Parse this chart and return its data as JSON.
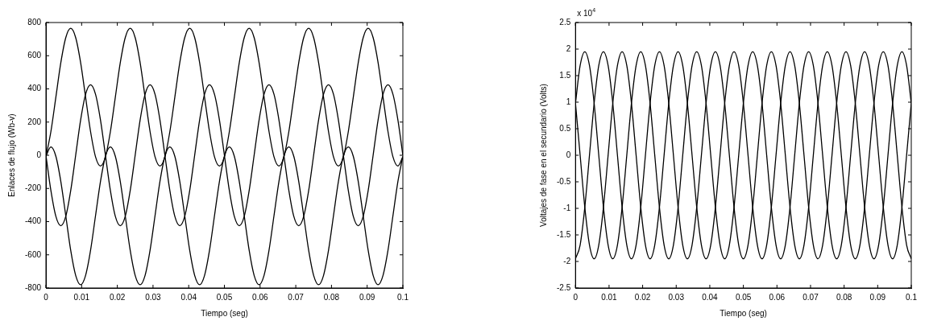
{
  "chart_data": [
    {
      "type": "line",
      "xlabel": "Tiempo (seg)",
      "ylabel": "Enlaces de flujo (Wb-v)",
      "x": [
        0,
        0.00139,
        0.00278,
        0.00417,
        0.00556,
        0.00694,
        0.00833,
        0.00972,
        0.01111,
        0.0125,
        0.01389,
        0.01528,
        0.01667,
        0.01806,
        0.01944,
        0.02083,
        0.02222,
        0.02361,
        0.025,
        0.02639,
        0.02778,
        0.02917,
        0.03056,
        0.03194,
        0.03333,
        0.03472,
        0.03611,
        0.0375,
        0.03889,
        0.04028,
        0.04167,
        0.04306,
        0.04444,
        0.04583,
        0.04722,
        0.04861,
        0.05,
        0.05139,
        0.05278,
        0.05417,
        0.05556,
        0.05694,
        0.05833,
        0.05972,
        0.06111,
        0.0625,
        0.06389,
        0.06528,
        0.06667,
        0.06806,
        0.06944,
        0.07083,
        0.07222,
        0.07361,
        0.075,
        0.07639,
        0.07778,
        0.07917,
        0.08056,
        0.08194,
        0.08333,
        0.08472,
        0.08611,
        0.0875,
        0.08889,
        0.09028,
        0.09167,
        0.09306,
        0.09444,
        0.09583,
        0.09722,
        0.09861,
        0.1
      ],
      "series": [
        {
          "color": "#000000",
          "values": [
            -9,
            143,
            350,
            558,
            709,
            765,
            709,
            558,
            350,
            143,
            -9,
            -65,
            -9,
            143,
            350,
            558,
            709,
            765,
            709,
            558,
            350,
            143,
            -9,
            -65,
            -9,
            143,
            350,
            558,
            709,
            765,
            709,
            558,
            350,
            143,
            -9,
            -65,
            -9,
            143,
            350,
            558,
            709,
            765,
            709,
            558,
            350,
            143,
            -9,
            -65,
            -9,
            143,
            350,
            558,
            709,
            765,
            709,
            558,
            350,
            143,
            -9,
            -65,
            -9,
            143,
            350,
            558,
            709,
            765,
            709,
            558,
            350,
            143,
            -9,
            -65,
            -9
          ]
        },
        {
          "color": "#000000",
          "values": [
            0,
            -213,
            -368,
            -425,
            -368,
            -213,
            0,
            213,
            368,
            425,
            368,
            213,
            0,
            -213,
            -368,
            -425,
            -368,
            -213,
            0,
            213,
            368,
            425,
            368,
            213,
            0,
            -213,
            -368,
            -425,
            -368,
            -213,
            0,
            213,
            368,
            425,
            368,
            213,
            0,
            -213,
            -368,
            -425,
            -368,
            -213,
            0,
            213,
            368,
            425,
            368,
            213,
            0,
            -213,
            -368,
            -425,
            -368,
            -213,
            0,
            213,
            368,
            425,
            368,
            213,
            0,
            -213,
            -368,
            -425,
            -368,
            -213,
            0,
            213,
            368,
            425,
            368,
            213,
            0
          ]
        },
        {
          "color": "#000000",
          "values": [
            -6,
            50,
            -6,
            -158,
            -365,
            -573,
            -724,
            -780,
            -724,
            -573,
            -365,
            -158,
            -6,
            50,
            -6,
            -158,
            -365,
            -573,
            -724,
            -780,
            -724,
            -573,
            -365,
            -158,
            -6,
            50,
            -6,
            -158,
            -365,
            -573,
            -724,
            -780,
            -724,
            -573,
            -365,
            -158,
            -6,
            50,
            -6,
            -158,
            -365,
            -573,
            -724,
            -780,
            -724,
            -573,
            -365,
            -158,
            -6,
            50,
            -6,
            -158,
            -365,
            -573,
            -724,
            -780,
            -724,
            -573,
            -365,
            -158,
            -6,
            50,
            -6,
            -158,
            -365,
            -573,
            -724,
            -780,
            -724,
            -573,
            -365,
            -158,
            -6
          ]
        }
      ],
      "xlim": [
        0,
        0.1
      ],
      "xticks": [
        0,
        0.01,
        0.02,
        0.03,
        0.04,
        0.05,
        0.06,
        0.07,
        0.08,
        0.09,
        0.1
      ],
      "ylim": [
        -800,
        800
      ],
      "yticks": [
        -800,
        -600,
        -400,
        -200,
        0,
        200,
        400,
        600,
        800
      ]
    },
    {
      "type": "line",
      "xlabel": "Tiempo (seg)",
      "ylabel": "Voltajes de fase en el secundario (Volts)",
      "annotations": [
        "x 10$^{4}$"
      ],
      "x": [
        0,
        0.00139,
        0.00278,
        0.00417,
        0.00556,
        0.00694,
        0.00833,
        0.00972,
        0.01111,
        0.0125,
        0.01389,
        0.01528,
        0.01667,
        0.01806,
        0.01944,
        0.02083,
        0.02222,
        0.02361,
        0.025,
        0.02639,
        0.02778,
        0.02917,
        0.03056,
        0.03194,
        0.03333,
        0.03472,
        0.03611,
        0.0375,
        0.03889,
        0.04028,
        0.04167,
        0.04306,
        0.04444,
        0.04583,
        0.04722,
        0.04861,
        0.05,
        0.05139,
        0.05278,
        0.05417,
        0.05556,
        0.05694,
        0.05833,
        0.05972,
        0.06111,
        0.0625,
        0.06389,
        0.06528,
        0.06667,
        0.06806,
        0.06944,
        0.07083,
        0.07222,
        0.07361,
        0.075,
        0.07639,
        0.07778,
        0.07917,
        0.08056,
        0.08194,
        0.08333,
        0.08472,
        0.08611,
        0.0875,
        0.08889,
        0.09028,
        0.09167,
        0.09306,
        0.09444,
        0.09583,
        0.09722,
        0.09861,
        0.1
      ],
      "series": [
        {
          "color": "#000000",
          "values": [
            0.98,
            1.69,
            1.95,
            1.69,
            0.98,
            0,
            -0.98,
            -1.69,
            -1.95,
            -1.69,
            -0.98,
            0,
            0.98,
            1.69,
            1.95,
            1.69,
            0.98,
            0,
            -0.98,
            -1.69,
            -1.95,
            -1.69,
            -0.98,
            0,
            0.98,
            1.69,
            1.95,
            1.69,
            0.98,
            0,
            -0.98,
            -1.69,
            -1.95,
            -1.69,
            -0.98,
            0,
            0.98,
            1.69,
            1.95,
            1.69,
            0.98,
            0,
            -0.98,
            -1.69,
            -1.95,
            -1.69,
            -0.98,
            0,
            0.98,
            1.69,
            1.95,
            1.69,
            0.98,
            0,
            -0.98,
            -1.69,
            -1.95,
            -1.69,
            -0.98,
            0,
            0.98,
            1.69,
            1.95,
            1.69,
            0.98,
            0,
            -0.98,
            -1.69,
            -1.95,
            -1.69,
            -0.98,
            0,
            0.98
          ]
        },
        {
          "color": "#000000",
          "values": [
            -1.95,
            -1.69,
            -0.98,
            0,
            0.98,
            1.69,
            1.95,
            1.69,
            0.98,
            0,
            -0.98,
            -1.69,
            -1.95,
            -1.69,
            -0.98,
            0,
            0.98,
            1.69,
            1.95,
            1.69,
            0.98,
            0,
            -0.98,
            -1.69,
            -1.95,
            -1.69,
            -0.98,
            0,
            0.98,
            1.69,
            1.95,
            1.69,
            0.98,
            0,
            -0.98,
            -1.69,
            -1.95,
            -1.69,
            -0.98,
            0,
            0.98,
            1.69,
            1.95,
            1.69,
            0.98,
            0,
            -0.98,
            -1.69,
            -1.95,
            -1.69,
            -0.98,
            0,
            0.98,
            1.69,
            1.95,
            1.69,
            0.98,
            0,
            -0.98,
            -1.69,
            -1.95,
            -1.69,
            -0.98,
            0,
            0.98,
            1.69,
            1.95,
            1.69,
            0.98,
            0,
            -0.98,
            -1.69,
            -1.95
          ]
        },
        {
          "color": "#000000",
          "values": [
            0.98,
            0,
            -0.98,
            -1.69,
            -1.95,
            -1.69,
            -0.98,
            0,
            0.98,
            1.69,
            1.95,
            1.69,
            0.98,
            0,
            -0.98,
            -1.69,
            -1.95,
            -1.69,
            -0.98,
            0,
            0.98,
            1.69,
            1.95,
            1.69,
            0.98,
            0,
            -0.98,
            -1.69,
            -1.95,
            -1.69,
            -0.98,
            0,
            0.98,
            1.69,
            1.95,
            1.69,
            0.98,
            0,
            -0.98,
            -1.69,
            -1.95,
            -1.69,
            -0.98,
            0,
            0.98,
            1.69,
            1.95,
            1.69,
            0.98,
            0,
            -0.98,
            -1.69,
            -1.95,
            -1.69,
            -0.98,
            0,
            0.98,
            1.69,
            1.95,
            1.69,
            0.98,
            0,
            -0.98,
            -1.69,
            -1.95,
            -1.69,
            -0.98,
            0,
            0.98,
            1.69,
            1.95,
            1.69,
            0.98
          ]
        }
      ],
      "xlim": [
        0,
        0.1
      ],
      "xticks": [
        0,
        0.01,
        0.02,
        0.03,
        0.04,
        0.05,
        0.06,
        0.07,
        0.08,
        0.09,
        0.1
      ],
      "ylim": [
        -2.5,
        2.5
      ],
      "yticks": [
        -2.5,
        -2,
        -1.5,
        -1,
        -0.5,
        0,
        0.5,
        1,
        1.5,
        2,
        2.5
      ]
    }
  ]
}
